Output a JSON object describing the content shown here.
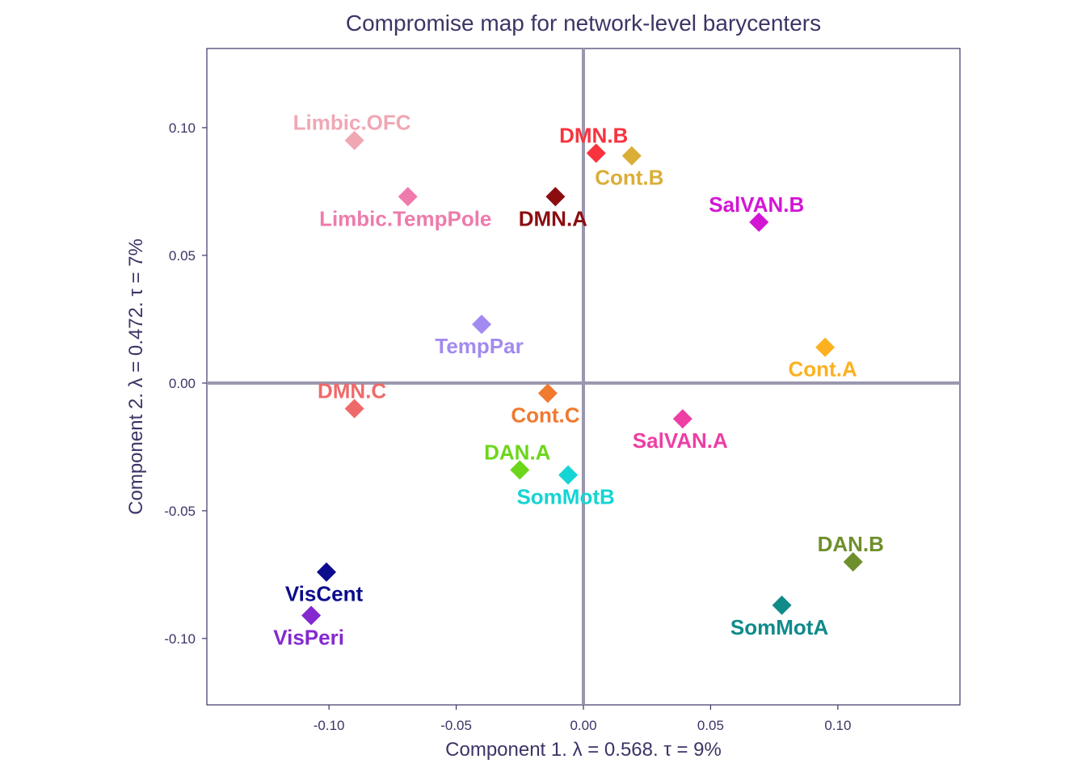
{
  "chart_data": {
    "type": "scatter",
    "title": "Compromise map for network-level barycenters",
    "xlabel": "Component 1.   λ = 0.568.  τ = 9%",
    "ylabel": "Component 2.   λ = 0.472.  τ = 7%",
    "xlim": [
      -0.148,
      0.148
    ],
    "ylim": [
      -0.126,
      0.131
    ],
    "x_ticks": [
      -0.1,
      -0.05,
      0.0,
      0.05,
      0.1
    ],
    "x_tick_labels": [
      "-0.10",
      "-0.05",
      "0.00",
      "0.05",
      "0.10"
    ],
    "y_ticks": [
      -0.1,
      -0.05,
      0.0,
      0.05,
      0.1
    ],
    "y_tick_labels": [
      "-0.10",
      "-0.05",
      "0.00",
      "0.05",
      "0.10"
    ],
    "reference_lines": {
      "x": 0,
      "y": 0
    },
    "grid": false,
    "legend": false,
    "points": [
      {
        "label": "Limbic.OFC",
        "x": -0.09,
        "y": 0.095,
        "color": "#f0a7b4",
        "label_pos": "above"
      },
      {
        "label": "Limbic.TempPole",
        "x": -0.069,
        "y": 0.073,
        "color": "#ee7bac",
        "label_pos": "below"
      },
      {
        "label": "DMN.B",
        "x": 0.005,
        "y": 0.09,
        "color": "#f8333e",
        "label_pos": "above"
      },
      {
        "label": "Cont.B",
        "x": 0.019,
        "y": 0.089,
        "color": "#dbae38",
        "label_pos": "below"
      },
      {
        "label": "DMN.A",
        "x": -0.011,
        "y": 0.073,
        "color": "#8b0d10",
        "label_pos": "below"
      },
      {
        "label": "SalVAN.B",
        "x": 0.069,
        "y": 0.063,
        "color": "#d216d4",
        "label_pos": "above"
      },
      {
        "label": "TempPar",
        "x": -0.04,
        "y": 0.023,
        "color": "#a38af0",
        "label_pos": "below"
      },
      {
        "label": "Cont.A",
        "x": 0.095,
        "y": 0.014,
        "color": "#fdb120",
        "label_pos": "below"
      },
      {
        "label": "DMN.C",
        "x": -0.09,
        "y": -0.01,
        "color": "#ee6a6a",
        "label_pos": "above"
      },
      {
        "label": "Cont.C",
        "x": -0.014,
        "y": -0.004,
        "color": "#ef7a30",
        "label_pos": "below"
      },
      {
        "label": "SalVAN.A",
        "x": 0.039,
        "y": -0.014,
        "color": "#ed3fa4",
        "label_pos": "below"
      },
      {
        "label": "DAN.A",
        "x": -0.025,
        "y": -0.034,
        "color": "#6cd61b",
        "label_pos": "above"
      },
      {
        "label": "SomMotB",
        "x": -0.006,
        "y": -0.036,
        "color": "#15d4d4",
        "label_pos": "below"
      },
      {
        "label": "DAN.B",
        "x": 0.106,
        "y": -0.07,
        "color": "#6e8f2c",
        "label_pos": "above"
      },
      {
        "label": "SomMotA",
        "x": 0.078,
        "y": -0.087,
        "color": "#118a8a",
        "label_pos": "below"
      },
      {
        "label": "VisCent",
        "x": -0.101,
        "y": -0.074,
        "color": "#0c0c8c",
        "label_pos": "below"
      },
      {
        "label": "VisPeri",
        "x": -0.107,
        "y": -0.091,
        "color": "#8429cf",
        "label_pos": "below"
      }
    ]
  },
  "colors": {
    "text": "#3b3566",
    "axis_line": "#3b3566",
    "reference_line": "#9a96ad"
  }
}
